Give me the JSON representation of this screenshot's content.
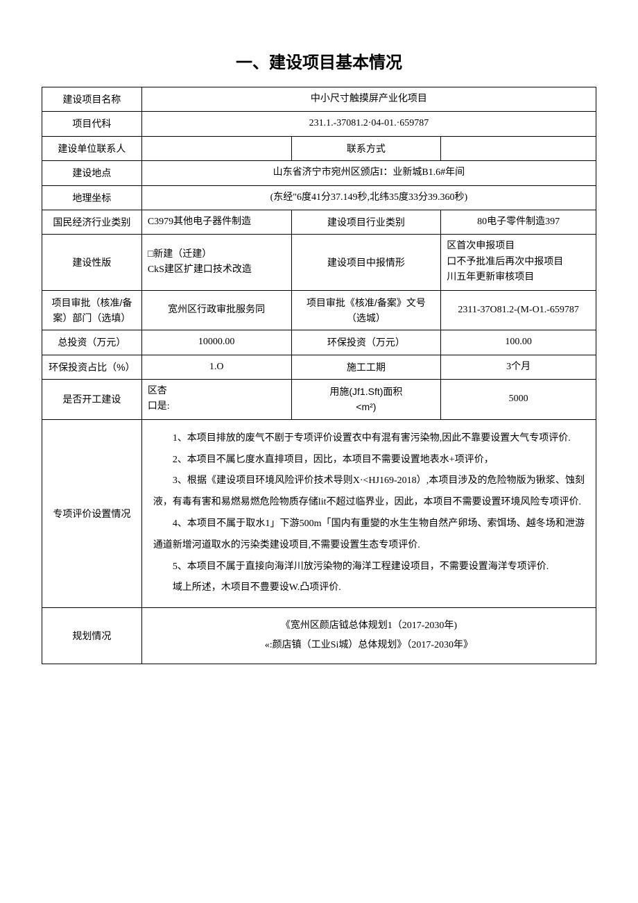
{
  "title": "一、建设项目基本情况",
  "rows": {
    "project_name": {
      "label": "建设项目名称",
      "value": "中小尺寸触摸屏产业化项目"
    },
    "project_code": {
      "label": "项目代科",
      "value": "231.1.-37081.2·04-01.·659787"
    },
    "contact_person": {
      "label": "建设单位联系人",
      "value": ""
    },
    "contact_method": {
      "label": "联系方式",
      "value": ""
    },
    "location": {
      "label": "建设地点",
      "value": "山东省济宁市宛州区颁店I：业新城B1.6#年间"
    },
    "coordinates": {
      "label": "地理坐标",
      "value": "(东经\"6度41分37.149秒,北纬35度33分39.360秒)"
    },
    "industry_category": {
      "label": "国民经济行业类别",
      "value": "C3979其他电子器件制造"
    },
    "project_industry": {
      "label": "建设项目行业类别",
      "value": "80电子零件制造397"
    },
    "construction_type": {
      "label": "建设性版",
      "value": "□新建（迁建）\nCkS建区扩建口技术改造"
    },
    "report_form": {
      "label": "建设项目中报情形",
      "value": "区首次申报项目\n口不予批准后再次中报项目\n川五年更新审核项目"
    },
    "approval_dept": {
      "label": "项目审批（核准/备案）部门（选填）",
      "value": "宽州区行政审批服务同"
    },
    "approval_no": {
      "label": "项目审批《核准/备案》文号（选城）",
      "value": "2311-37O81.2-(M-O1.-659787"
    },
    "total_investment": {
      "label": "总投资（万元）",
      "value": "10000.00"
    },
    "env_investment": {
      "label": "环保投资（万元）",
      "value": "100.00"
    },
    "env_ratio": {
      "label": "环保投资占比（%）",
      "value": "1.O"
    },
    "construction_period": {
      "label": "施工工期",
      "value": "3个月"
    },
    "is_started": {
      "label": "是否开工建设",
      "value": "区杏\n口是:"
    },
    "area": {
      "label": "用施(Jf1.Sft)面积\n<m²)",
      "value": "5000"
    },
    "special_eval": {
      "label": "专项评价设置情况",
      "p1": "1、本项目排放的废气不剧于专项评价设置衣中有混有害污染物,因此不靠要设置大气专项评价.",
      "p2": "2、本项目不属匕度水直排项目，因比，本项目不需要设置地表水+项评价，",
      "p3": "3、根据《建设项目环境风险评价技术导则X·<HJ169-2018）,本项目涉及的危险物版为锹浆、蚀刻液，有毒有害和易燃易燃危险物质存储lit不超过临界业，因此，本项目不需要设置环境风险专项评价.",
      "p4": "4、本项目不属于取水1」下游500m「国内有重變的水生生物自然产卵场、索饵场、越冬场和泄游通道新增河道取水的污染类建设项目,不需要设置生态专项评价.",
      "p5": "5、本项目不属于直接向海洋川放污染物的海洋工程建设项目，不需要设置海洋专项评价.",
      "p6": "域上所述，木项目不豊要设W.凸项评价."
    },
    "planning": {
      "label": "规划情况",
      "line1": "《宽州区颜店钺总体规划1（2017-2030年)",
      "line2": "«:颜店镇（工业Si城）总体规划》（2017-2030年》"
    }
  }
}
